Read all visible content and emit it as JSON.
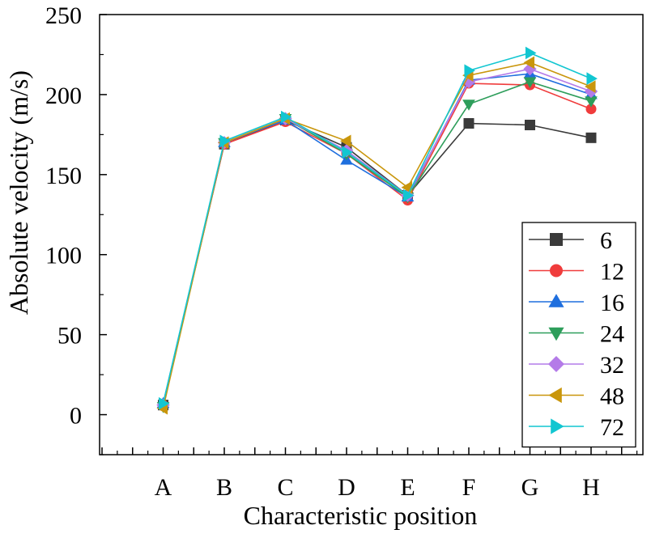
{
  "chart_data": {
    "type": "line",
    "title": "",
    "xlabel": "Characteristic position",
    "ylabel": "Absolute velocity (m/s)",
    "categories": [
      "A",
      "B",
      "C",
      "D",
      "E",
      "F",
      "G",
      "H"
    ],
    "ylim": [
      -25,
      250
    ],
    "yticks": [
      0,
      50,
      100,
      150,
      200,
      250
    ],
    "grid": false,
    "legend_position": "bottom-right",
    "series": [
      {
        "name": "6",
        "color": "#3a3a3a",
        "marker": "square",
        "values": [
          6,
          169,
          184,
          167,
          137,
          182,
          181,
          173
        ]
      },
      {
        "name": "12",
        "color": "#f03c3c",
        "marker": "circle",
        "values": [
          6,
          169,
          183,
          163,
          134,
          207,
          206,
          191
        ]
      },
      {
        "name": "16",
        "color": "#1f6fde",
        "marker": "triangle-up",
        "values": [
          7,
          170,
          184,
          159,
          136,
          209,
          213,
          200
        ]
      },
      {
        "name": "24",
        "color": "#2e9e5b",
        "marker": "triangle-down",
        "values": [
          5,
          170,
          185,
          163,
          136,
          194,
          208,
          196
        ]
      },
      {
        "name": "32",
        "color": "#b47be8",
        "marker": "diamond",
        "values": [
          6,
          170,
          185,
          165,
          137,
          208,
          216,
          202
        ]
      },
      {
        "name": "48",
        "color": "#c9960c",
        "marker": "triangle-left",
        "values": [
          4,
          170,
          185,
          171,
          142,
          212,
          220,
          205
        ]
      },
      {
        "name": "72",
        "color": "#12c6d1",
        "marker": "triangle-right",
        "values": [
          7,
          171,
          186,
          164,
          137,
          215,
          226,
          210
        ]
      }
    ]
  }
}
